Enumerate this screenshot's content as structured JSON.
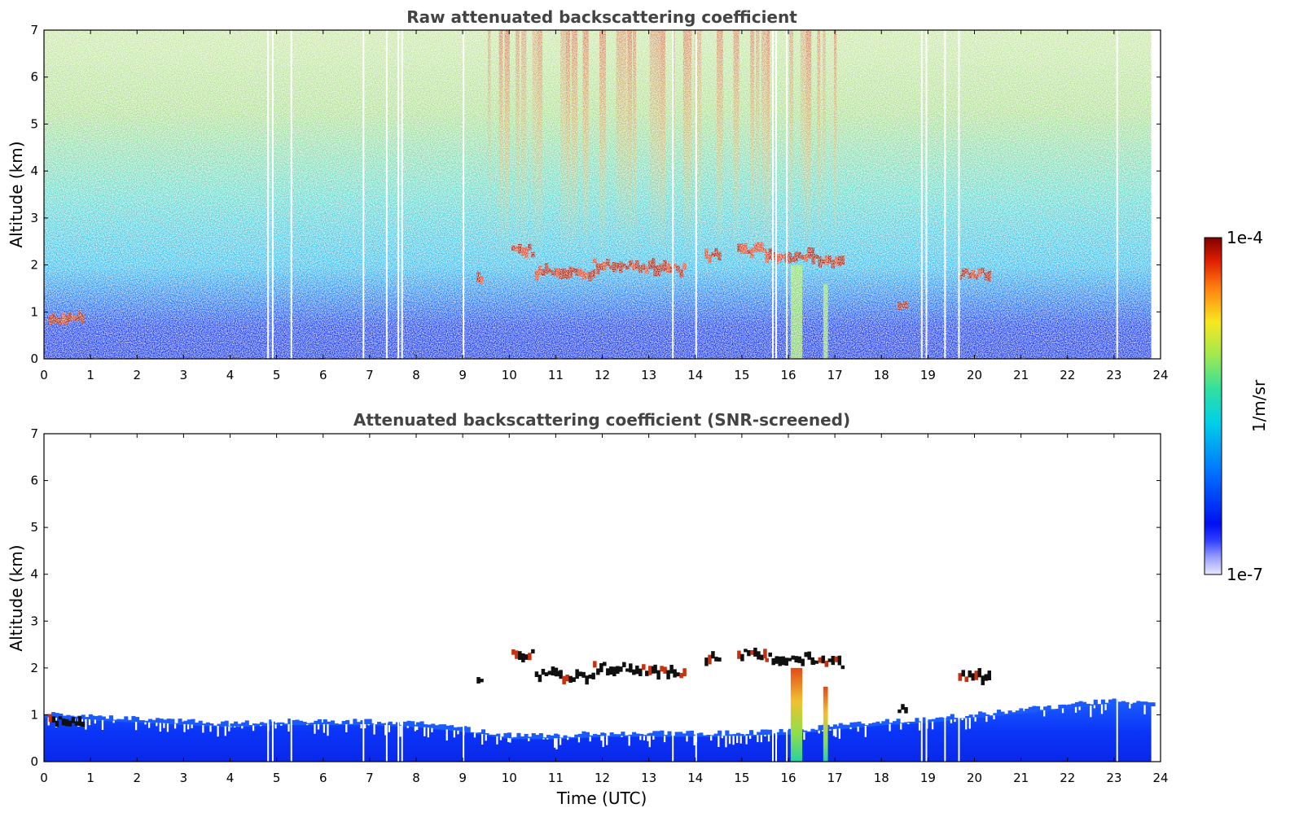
{
  "chart_data": [
    {
      "type": "heatmap",
      "title": "Raw attenuated backscattering coefficient",
      "xlabel": "",
      "ylabel": "Altitude (km)",
      "xlim": [
        0,
        24
      ],
      "ylim": [
        0,
        7
      ],
      "xticks": [
        0,
        1,
        2,
        3,
        4,
        5,
        6,
        7,
        8,
        9,
        10,
        11,
        12,
        13,
        14,
        15,
        16,
        17,
        18,
        19,
        20,
        21,
        22,
        23,
        24
      ],
      "yticks": [
        0,
        1,
        2,
        3,
        4,
        5,
        6,
        7
      ],
      "data_end_hour": 23.8,
      "gaps_hours": [
        4.8,
        4.9,
        5.3,
        6.85,
        7.35,
        7.6,
        7.68,
        9.0,
        13.5,
        14.0,
        15.65,
        15.72,
        15.95,
        18.85,
        18.95,
        19.35,
        19.65,
        23.05
      ],
      "cloud_layers": [
        {
          "start": 0.1,
          "end": 0.85,
          "altitude_km": 0.85
        },
        {
          "start": 9.3,
          "end": 9.4,
          "altitude_km": 1.7
        },
        {
          "start": 10.05,
          "end": 10.5,
          "altitude_km": 2.3
        },
        {
          "start": 10.55,
          "end": 11.0,
          "altitude_km": 1.85
        },
        {
          "start": 11.0,
          "end": 11.8,
          "altitude_km": 1.8
        },
        {
          "start": 11.8,
          "end": 12.5,
          "altitude_km": 2.0
        },
        {
          "start": 12.5,
          "end": 13.1,
          "altitude_km": 1.95
        },
        {
          "start": 13.1,
          "end": 13.8,
          "altitude_km": 1.9
        },
        {
          "start": 14.2,
          "end": 14.55,
          "altitude_km": 2.2
        },
        {
          "start": 14.9,
          "end": 15.5,
          "altitude_km": 2.3
        },
        {
          "start": 15.5,
          "end": 16.5,
          "altitude_km": 2.2
        },
        {
          "start": 16.5,
          "end": 17.2,
          "altitude_km": 2.1
        },
        {
          "start": 18.35,
          "end": 18.55,
          "altitude_km": 1.15
        },
        {
          "start": 19.65,
          "end": 20.3,
          "altitude_km": 1.82
        }
      ],
      "plumes": [
        {
          "start": 16.05,
          "end": 16.3,
          "top_km": 2.0
        },
        {
          "start": 16.75,
          "end": 16.85,
          "top_km": 1.6
        }
      ]
    },
    {
      "type": "heatmap",
      "title": "Attenuated backscattering coefficient (SNR-screened)",
      "xlabel": "Time (UTC)",
      "ylabel": "Altitude (km)",
      "xlim": [
        0,
        24
      ],
      "ylim": [
        0,
        7
      ],
      "xticks": [
        0,
        1,
        2,
        3,
        4,
        5,
        6,
        7,
        8,
        9,
        10,
        11,
        12,
        13,
        14,
        15,
        16,
        17,
        18,
        19,
        20,
        21,
        22,
        23,
        24
      ],
      "yticks": [
        0,
        1,
        2,
        3,
        4,
        5,
        6,
        7
      ],
      "boundary_layer_top_km": [
        [
          0,
          0.95
        ],
        [
          1,
          0.9
        ],
        [
          2,
          0.85
        ],
        [
          3,
          0.8
        ],
        [
          4,
          0.75
        ],
        [
          5,
          0.8
        ],
        [
          6,
          0.8
        ],
        [
          7,
          0.8
        ],
        [
          8,
          0.75
        ],
        [
          9,
          0.65
        ],
        [
          10,
          0.5
        ],
        [
          11,
          0.5
        ],
        [
          12,
          0.55
        ],
        [
          13,
          0.55
        ],
        [
          14,
          0.55
        ],
        [
          15,
          0.55
        ],
        [
          16,
          0.6
        ],
        [
          17,
          0.7
        ],
        [
          18,
          0.8
        ],
        [
          19,
          0.85
        ],
        [
          20,
          0.95
        ],
        [
          21,
          1.05
        ],
        [
          22,
          1.15
        ],
        [
          23,
          1.25
        ],
        [
          23.8,
          1.2
        ]
      ],
      "colorbar": {
        "label": "1/m/sr",
        "min_label": "1e-7",
        "max_label": "1e-4",
        "scale": "log",
        "colormap": "jet"
      }
    }
  ]
}
